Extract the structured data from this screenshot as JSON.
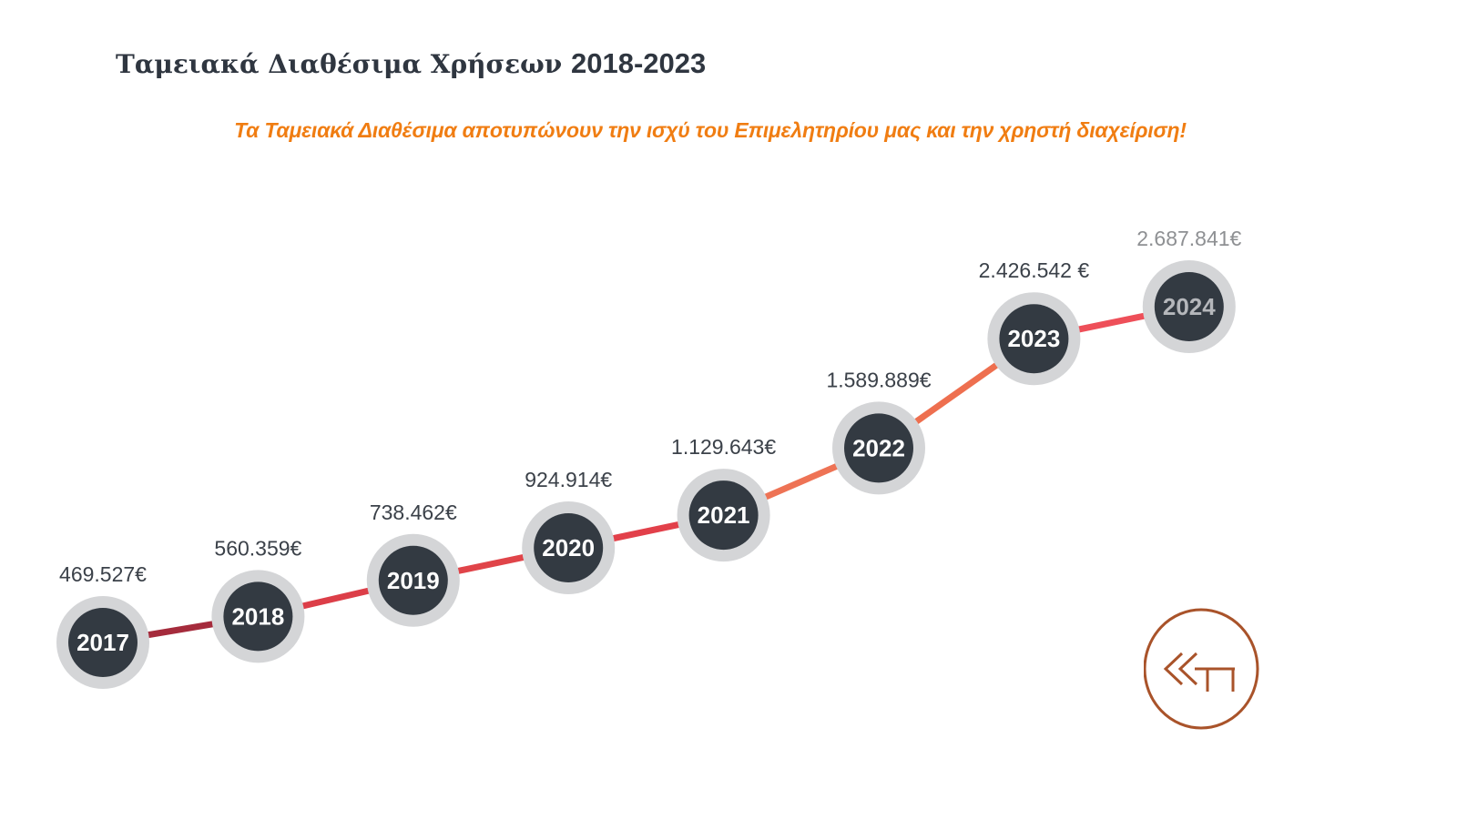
{
  "title": {
    "serif_part": "Ταμειακά Διαθέσιμα Χρήσεων ",
    "year_range": "2018-2023"
  },
  "subtitle": "Τα Ταμειακά Διαθέσιμα αποτυπώνουν την ισχύ του Επιμελητηρίου μας και την χρηστή διαχείριση!",
  "colors": {
    "title": "#2f3640",
    "subtitle": "#f07d12",
    "node_fill": "#333a42",
    "node_ring": "#d4d5d7",
    "value_text": "#3b4149",
    "projected_text": "#8e9093",
    "logo": "#a9532a"
  },
  "logo": {
    "icon": "chamber-logo-icon"
  },
  "chart_data": {
    "type": "line",
    "x": [
      "2017",
      "2018",
      "2019",
      "2020",
      "2021",
      "2022",
      "2023",
      "2024"
    ],
    "values": [
      469527,
      560359,
      738462,
      924914,
      1129643,
      1589889,
      2426542,
      2687841
    ],
    "value_labels": [
      "469.527€",
      "560.359€",
      "738.462€",
      "924.914€",
      "1.129.643€",
      "1.589.889€",
      "2.426.542 €",
      "2.687.841€"
    ],
    "projected_index": 7,
    "segment_colors": [
      "#a52b3c",
      "#dc3e48",
      "#e04449",
      "#e2404a",
      "#ee7355",
      "#ee6f4f",
      "#ee4f59"
    ],
    "title": "",
    "xlabel": "",
    "ylabel": "",
    "ylim": [
      0,
      3000000
    ],
    "grid": false,
    "legend": "none"
  }
}
